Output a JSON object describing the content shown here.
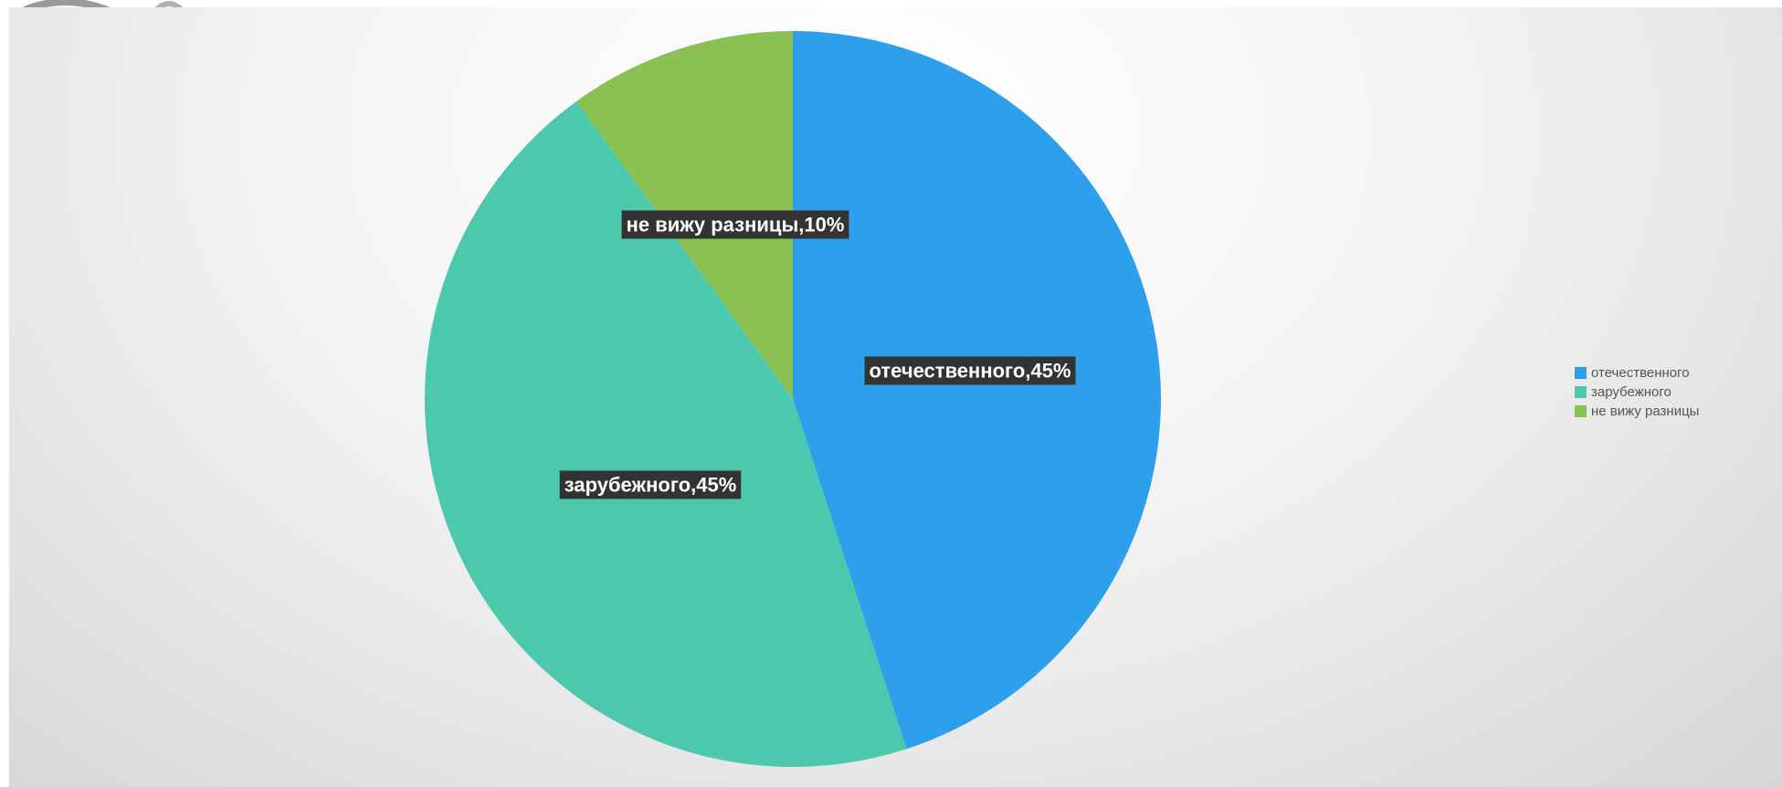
{
  "colors": {
    "background": "#ececec",
    "label_bg": "#333333",
    "label_text": "#ffffff",
    "legend_text": "#555555"
  },
  "chart_data": {
    "type": "pie",
    "title": "",
    "start_angle_deg": 0,
    "direction": "clockwise",
    "legend_position": "right",
    "slices": [
      {
        "label": "отечественного",
        "value": 45,
        "display": "отечественного,45%",
        "color": "#2e9fea"
      },
      {
        "label": "зарубежного",
        "value": 45,
        "display": "зарубежного,45%",
        "color": "#4cc9ac"
      },
      {
        "label": "не вижу разницы",
        "value": 10,
        "display": "не вижу разницы,10%",
        "color": "#8bc152"
      }
    ]
  }
}
